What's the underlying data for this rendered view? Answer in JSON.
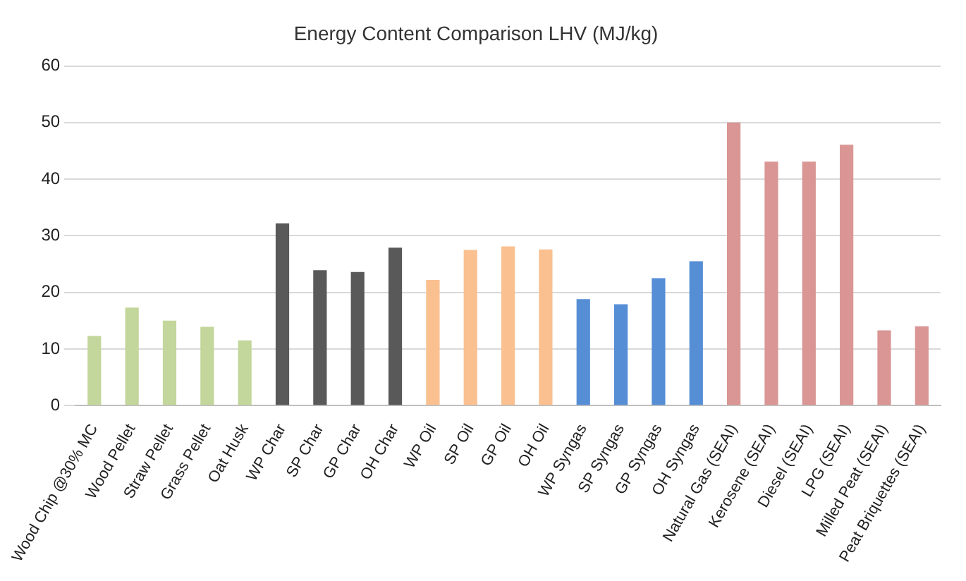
{
  "chart_data": {
    "type": "bar",
    "title": "Energy Content Comparison LHV (MJ/kg)",
    "categories": [
      "Wood Chip @30% MC",
      "Wood Pellet",
      "Straw Pellet",
      "Grass Pellet",
      "Oat Husk",
      "WP Char",
      "SP Char",
      "GP Char",
      "OH Char",
      "WP Oil",
      "SP Oil",
      "GP Oil",
      "OH Oil",
      "WP Syngas",
      "SP Syngas",
      "GP Syngas",
      "OH Syngas",
      "Natural Gas (SEAI)",
      "Kerosene (SEAI)",
      "Diesel (SEAI)",
      "LPG (SEAI)",
      "Milled Peat (SEAI)",
      "Peat Briquettes (SEAI)"
    ],
    "values": [
      12.3,
      17.3,
      15,
      13.9,
      11.5,
      32.2,
      23.9,
      23.6,
      27.9,
      22.2,
      27.5,
      28.1,
      27.6,
      18.8,
      17.9,
      22.5,
      25.5,
      50,
      43.1,
      43.1,
      46.1,
      13.3,
      14
    ],
    "colors": [
      "#c3d69b",
      "#c3d69b",
      "#c3d69b",
      "#c3d69b",
      "#c3d69b",
      "#595959",
      "#595959",
      "#595959",
      "#595959",
      "#fac090",
      "#fac090",
      "#fac090",
      "#fac090",
      "#558ed5",
      "#558ed5",
      "#558ed5",
      "#558ed5",
      "#d99694",
      "#d99694",
      "#d99694",
      "#d99694",
      "#d99694",
      "#d99694"
    ],
    "ylim": [
      0,
      60
    ],
    "yticks": [
      0,
      10,
      20,
      30,
      40,
      50,
      60
    ],
    "grid": "y",
    "legend": false
  }
}
